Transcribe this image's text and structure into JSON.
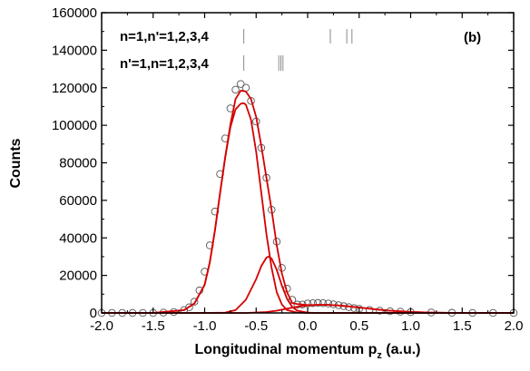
{
  "chart_data": {
    "type": "scatter",
    "panel_label": "(b)",
    "xlabel": "Longitudinal momentum p",
    "xlabel_sub": "z",
    "xlabel_units": " (a.u.)",
    "ylabel": "Counts",
    "xlim": [
      -2.0,
      2.0
    ],
    "ylim": [
      0,
      160000
    ],
    "x_ticks": [
      "-2.0",
      "-1.5",
      "-1.0",
      "-0.5",
      "0.0",
      "0.5",
      "1.0",
      "1.5",
      "2.0"
    ],
    "x_tick_values": [
      -2.0,
      -1.5,
      -1.0,
      -0.5,
      0.0,
      0.5,
      1.0,
      1.5,
      2.0
    ],
    "y_ticks": [
      "0",
      "20000",
      "40000",
      "60000",
      "80000",
      "100000",
      "120000",
      "140000",
      "160000"
    ],
    "y_tick_values": [
      0,
      20000,
      40000,
      60000,
      80000,
      100000,
      120000,
      140000,
      160000
    ],
    "grid": false,
    "annotations": [
      {
        "text": "n=1,n'=1,2,3,4",
        "markers_x": [
          -0.62,
          0.22,
          0.38,
          0.43
        ]
      },
      {
        "text": "n'=1,n=1,2,3,4",
        "markers_x": [
          -0.62,
          -0.28,
          -0.26,
          -0.24
        ]
      }
    ],
    "series": [
      {
        "style": "open-circles",
        "color": "#555555",
        "x": [
          -2.0,
          -1.9,
          -1.8,
          -1.7,
          -1.6,
          -1.5,
          -1.4,
          -1.3,
          -1.2,
          -1.15,
          -1.1,
          -1.05,
          -1.0,
          -0.95,
          -0.9,
          -0.85,
          -0.8,
          -0.75,
          -0.7,
          -0.65,
          -0.6,
          -0.55,
          -0.5,
          -0.45,
          -0.4,
          -0.35,
          -0.3,
          -0.25,
          -0.2,
          -0.15,
          -0.1,
          -0.05,
          0.0,
          0.05,
          0.1,
          0.15,
          0.2,
          0.25,
          0.3,
          0.35,
          0.4,
          0.45,
          0.5,
          0.6,
          0.7,
          0.8,
          0.9,
          1.0,
          1.2,
          1.4,
          1.6,
          1.8,
          2.0
        ],
        "y": [
          0,
          0,
          0,
          0,
          0,
          0,
          200,
          500,
          1500,
          3000,
          6000,
          12000,
          22000,
          36000,
          54000,
          74000,
          93000,
          109000,
          119000,
          122000,
          120000,
          113000,
          102000,
          88000,
          72000,
          55000,
          38000,
          24000,
          13000,
          7000,
          4500,
          4500,
          5000,
          5200,
          5300,
          5200,
          5000,
          4600,
          4100,
          3600,
          3100,
          2600,
          2200,
          1600,
          1200,
          900,
          650,
          450,
          250,
          100,
          0,
          0,
          0
        ]
      },
      {
        "style": "line",
        "color": "#d40000",
        "x": [
          -2.0,
          -1.5,
          -1.2,
          -1.1,
          -1.0,
          -0.95,
          -0.9,
          -0.85,
          -0.8,
          -0.75,
          -0.7,
          -0.65,
          -0.62,
          -0.6,
          -0.55,
          -0.5,
          -0.45,
          -0.4,
          -0.35,
          -0.3,
          -0.25,
          -0.2,
          -0.1,
          0.0,
          0.5,
          1.0,
          2.0
        ],
        "y": [
          0,
          0,
          1500,
          5000,
          15000,
          27000,
          44000,
          64000,
          83000,
          99000,
          108500,
          111500,
          111800,
          111000,
          103000,
          86000,
          64000,
          42000,
          24000,
          11000,
          4500,
          1500,
          200,
          0,
          0,
          0,
          0
        ]
      },
      {
        "style": "line",
        "color": "#d40000",
        "x": [
          -2.0,
          -1.0,
          -0.8,
          -0.7,
          -0.6,
          -0.5,
          -0.45,
          -0.4,
          -0.38,
          -0.35,
          -0.3,
          -0.25,
          -0.2,
          -0.15,
          -0.1,
          0.0,
          0.1,
          0.5,
          2.0
        ],
        "y": [
          0,
          0,
          200,
          1500,
          7000,
          18000,
          25000,
          29500,
          30000,
          29000,
          23000,
          14500,
          7500,
          3200,
          1200,
          150,
          0,
          0,
          0
        ]
      },
      {
        "style": "line",
        "color": "#d40000",
        "x": [
          -2.0,
          -0.6,
          -0.4,
          -0.3,
          -0.2,
          -0.1,
          0.0,
          0.1,
          0.2,
          0.3,
          0.4,
          0.5,
          0.6,
          0.7,
          0.8,
          1.0,
          1.2,
          1.5,
          2.0
        ],
        "y": [
          0,
          0,
          500,
          1200,
          2300,
          3300,
          4000,
          4300,
          4300,
          4000,
          3500,
          2900,
          2300,
          1700,
          1200,
          550,
          200,
          0,
          0
        ]
      },
      {
        "style": "line",
        "color": "#d40000",
        "x": [
          -2.0,
          -1.5,
          -1.2,
          -1.1,
          -1.0,
          -0.95,
          -0.9,
          -0.85,
          -0.8,
          -0.75,
          -0.7,
          -0.65,
          -0.6,
          -0.55,
          -0.5,
          -0.45,
          -0.4,
          -0.35,
          -0.3,
          -0.25,
          -0.2,
          -0.15,
          -0.1,
          0.0,
          0.1,
          0.2,
          0.3,
          0.4,
          0.5,
          0.6,
          0.7,
          0.8,
          1.0,
          1.2,
          1.5,
          2.0
        ],
        "y": [
          0,
          0,
          1500,
          5000,
          15000,
          27000,
          44000,
          64000,
          83200,
          100500,
          114000,
          118500,
          118000,
          114000,
          104500,
          89000,
          72000,
          55000,
          36000,
          21000,
          11000,
          5300,
          4700,
          4200,
          4300,
          4300,
          4000,
          3500,
          2900,
          2300,
          1700,
          1200,
          550,
          200,
          0,
          0
        ]
      }
    ]
  }
}
